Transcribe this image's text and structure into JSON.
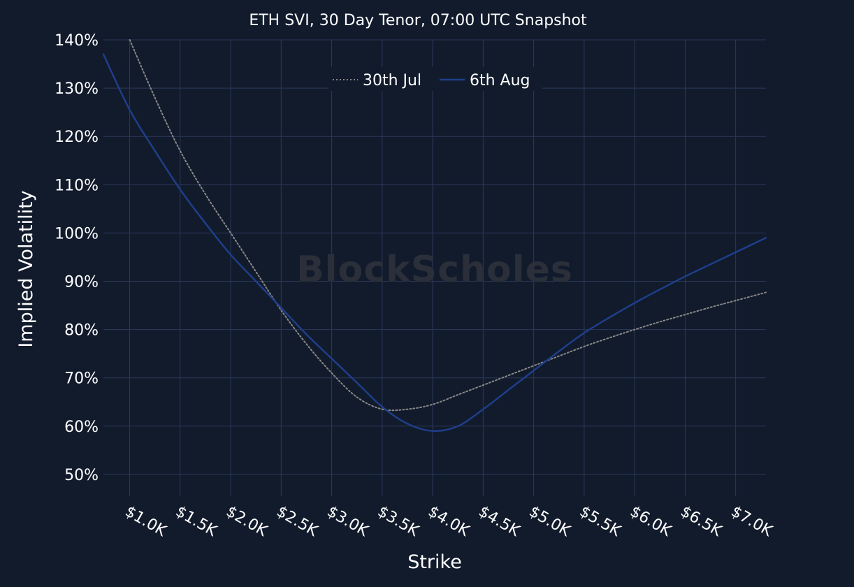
{
  "chart_data": {
    "type": "line",
    "title": "ETH SVI, 30 Day Tenor, 07:00 UTC Snapshot",
    "xlabel": "Strike",
    "ylabel": "Implied Volatility",
    "x_ticks": [
      {
        "value": 1000,
        "label": "$1.0K"
      },
      {
        "value": 1500,
        "label": "$1.5K"
      },
      {
        "value": 2000,
        "label": "$2.0K"
      },
      {
        "value": 2500,
        "label": "$2.5K"
      },
      {
        "value": 3000,
        "label": "$3.0K"
      },
      {
        "value": 3500,
        "label": "$3.5K"
      },
      {
        "value": 4000,
        "label": "$4.0K"
      },
      {
        "value": 4500,
        "label": "$4.5K"
      },
      {
        "value": 5000,
        "label": "$5.0K"
      },
      {
        "value": 5500,
        "label": "$5.5K"
      },
      {
        "value": 6000,
        "label": "$6.0K"
      },
      {
        "value": 6500,
        "label": "$6.5K"
      },
      {
        "value": 7000,
        "label": "$7.0K"
      }
    ],
    "y_ticks": [
      {
        "value": 50,
        "label": "50%"
      },
      {
        "value": 60,
        "label": "60%"
      },
      {
        "value": 70,
        "label": "70%"
      },
      {
        "value": 80,
        "label": "80%"
      },
      {
        "value": 90,
        "label": "90%"
      },
      {
        "value": 100,
        "label": "100%"
      },
      {
        "value": 110,
        "label": "110%"
      },
      {
        "value": 120,
        "label": "120%"
      },
      {
        "value": 130,
        "label": "130%"
      },
      {
        "value": 140,
        "label": "140%"
      }
    ],
    "xlim": [
      740,
      7300
    ],
    "ylim": [
      45.5,
      140
    ],
    "grid": true,
    "legend_position": "top-center",
    "series": [
      {
        "name": "30th Jul",
        "color": "#888888",
        "dash": "dotted",
        "points": [
          [
            1000,
            140
          ],
          [
            1250,
            128
          ],
          [
            1500,
            117
          ],
          [
            1750,
            108
          ],
          [
            2000,
            100
          ],
          [
            2250,
            92
          ],
          [
            2500,
            84
          ],
          [
            2750,
            77
          ],
          [
            3000,
            71
          ],
          [
            3250,
            66
          ],
          [
            3500,
            63.5
          ],
          [
            3750,
            63.5
          ],
          [
            4000,
            64.5
          ],
          [
            4250,
            66.5
          ],
          [
            4500,
            68.5
          ],
          [
            4750,
            70.5
          ],
          [
            5000,
            72.5
          ],
          [
            5250,
            74.5
          ],
          [
            5500,
            76.5
          ],
          [
            5750,
            78.3
          ],
          [
            6000,
            80
          ],
          [
            6250,
            81.6
          ],
          [
            6500,
            83.1
          ],
          [
            6750,
            84.6
          ],
          [
            7000,
            86
          ],
          [
            7300,
            87.7
          ]
        ]
      },
      {
        "name": "6th Aug",
        "color": "#1f3f8c",
        "dash": "solid",
        "points": [
          [
            740,
            137
          ],
          [
            1000,
            125.5
          ],
          [
            1250,
            117
          ],
          [
            1500,
            109
          ],
          [
            1750,
            102
          ],
          [
            2000,
            95.5
          ],
          [
            2250,
            90
          ],
          [
            2500,
            84.5
          ],
          [
            2750,
            79
          ],
          [
            3000,
            74
          ],
          [
            3250,
            69
          ],
          [
            3500,
            64
          ],
          [
            3750,
            60.5
          ],
          [
            4000,
            59
          ],
          [
            4250,
            60
          ],
          [
            4500,
            63.5
          ],
          [
            4750,
            67.5
          ],
          [
            5000,
            71.5
          ],
          [
            5250,
            75.5
          ],
          [
            5500,
            79.3
          ],
          [
            5750,
            82.5
          ],
          [
            6000,
            85.5
          ],
          [
            6250,
            88.3
          ],
          [
            6500,
            91
          ],
          [
            6750,
            93.5
          ],
          [
            7000,
            96
          ],
          [
            7300,
            99
          ]
        ]
      }
    ]
  },
  "watermark": "BlockScholes"
}
